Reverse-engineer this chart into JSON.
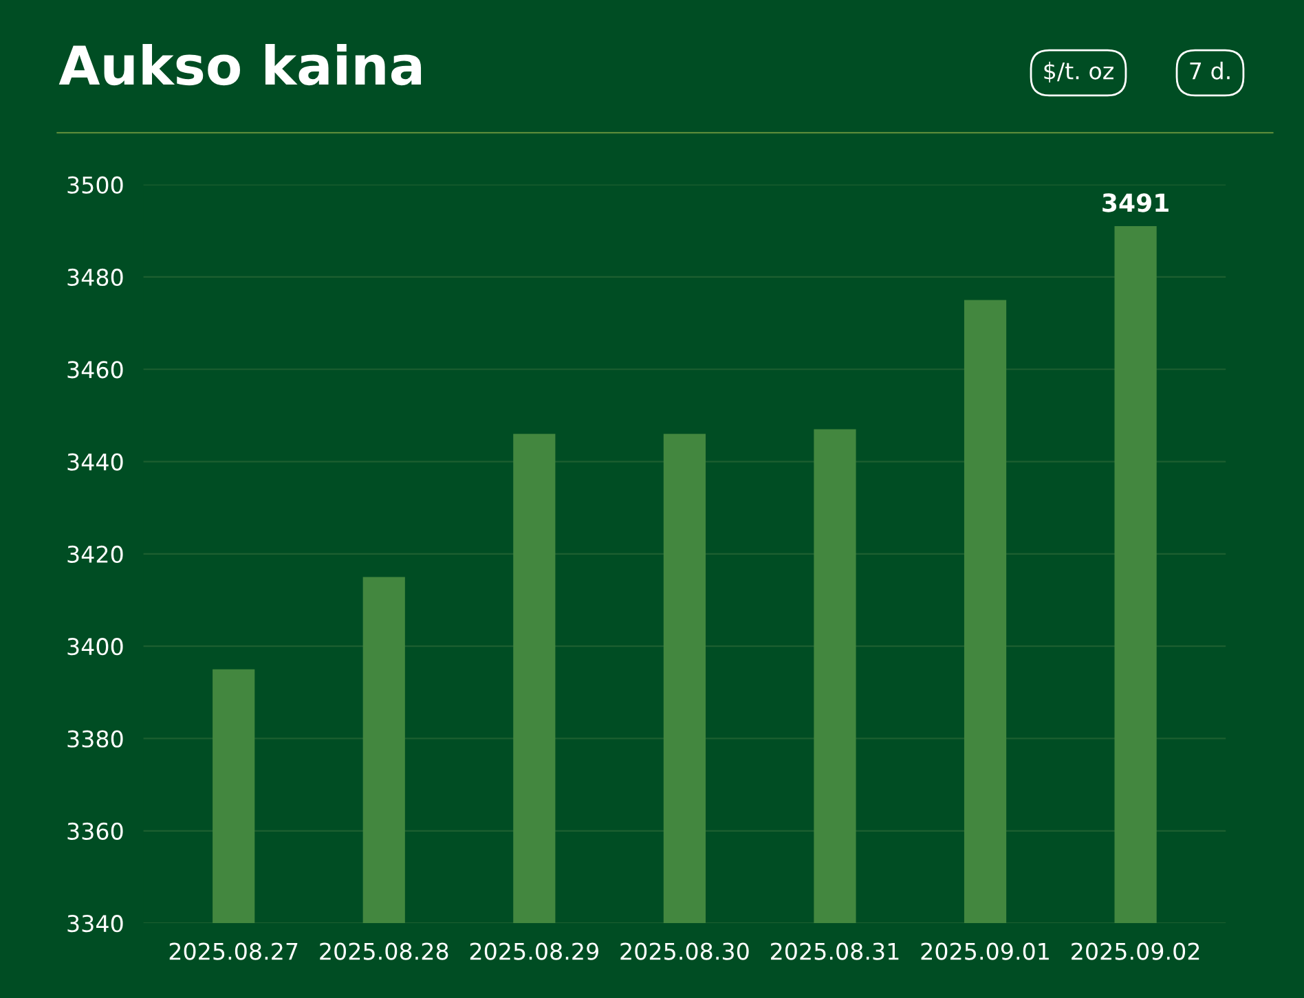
{
  "chart_data": {
    "type": "bar",
    "title": "Aukso kaina",
    "annotations": [
      "$/t. oz",
      "7 d."
    ],
    "categories": [
      "2025.08.27",
      "2025.08.28",
      "2025.08.29",
      "2025.08.30",
      "2025.08.31",
      "2025.09.01",
      "2025.09.02"
    ],
    "values": [
      3395,
      3415,
      3446,
      3446,
      3447,
      3475,
      3491
    ],
    "value_labels": [
      null,
      null,
      null,
      null,
      null,
      null,
      "3491"
    ],
    "color": "#43873f",
    "ylim": [
      3340,
      3500
    ],
    "yticks": [
      3340,
      3360,
      3380,
      3400,
      3420,
      3440,
      3460,
      3480,
      3500
    ],
    "grid": "y",
    "legend": false
  }
}
